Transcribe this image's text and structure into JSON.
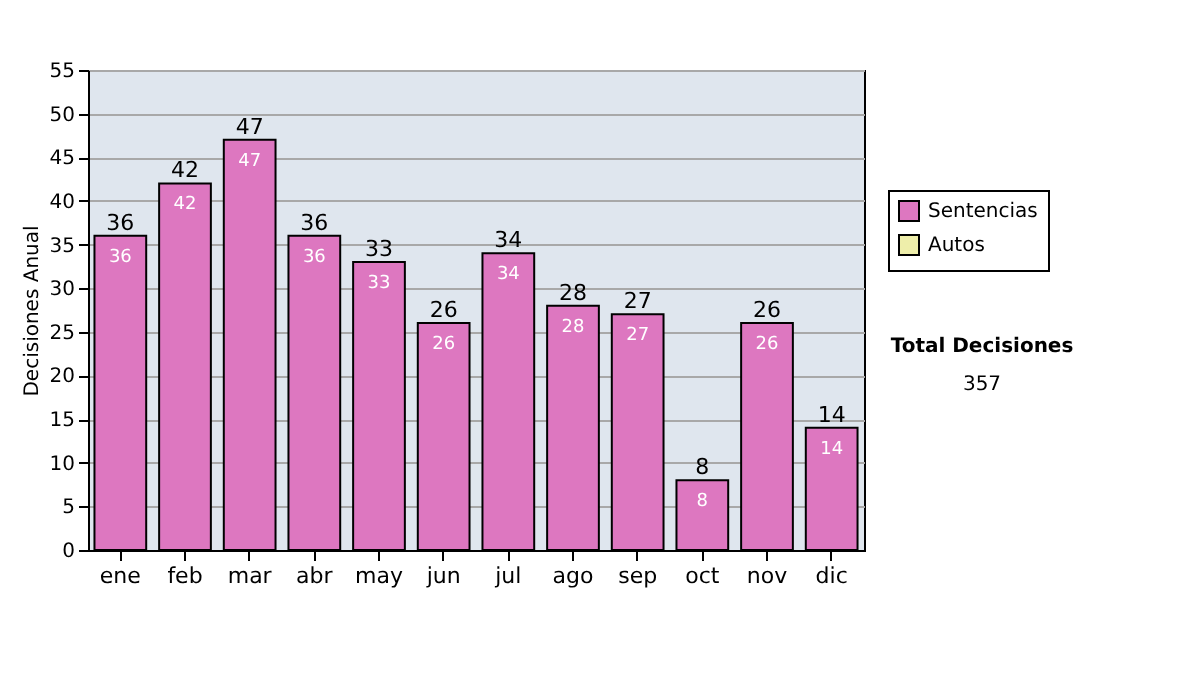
{
  "chart_data": {
    "type": "bar",
    "ylabel": "Decisiones Anual",
    "stacked": true,
    "categories": [
      "ene",
      "feb",
      "mar",
      "abr",
      "may",
      "jun",
      "jul",
      "ago",
      "sep",
      "oct",
      "nov",
      "dic"
    ],
    "series": [
      {
        "name": "Sentencias",
        "color": "#dd77c0",
        "values": [
          36,
          42,
          47,
          36,
          33,
          26,
          34,
          28,
          27,
          8,
          26,
          14
        ],
        "value_labels": [
          "36",
          "42",
          "47",
          "36",
          "33",
          "26",
          "34",
          "28",
          "27",
          "8",
          "26",
          "14"
        ]
      },
      {
        "name": "Autos",
        "color": "#eeeeaa",
        "values": [
          0,
          0,
          0,
          0,
          0,
          0,
          0,
          0,
          0,
          0,
          0,
          0
        ]
      }
    ],
    "totals": [
      "36",
      "42",
      "47",
      "36",
      "33",
      "26",
      "34",
      "28",
      "27",
      "8",
      "26",
      "14"
    ],
    "ylim": [
      0,
      55
    ],
    "yticks": [
      0,
      5,
      10,
      15,
      20,
      25,
      30,
      35,
      40,
      45,
      50,
      55
    ],
    "grid": "y",
    "legend": "right",
    "annotations": [
      "Total Decisiones",
      "357"
    ]
  }
}
